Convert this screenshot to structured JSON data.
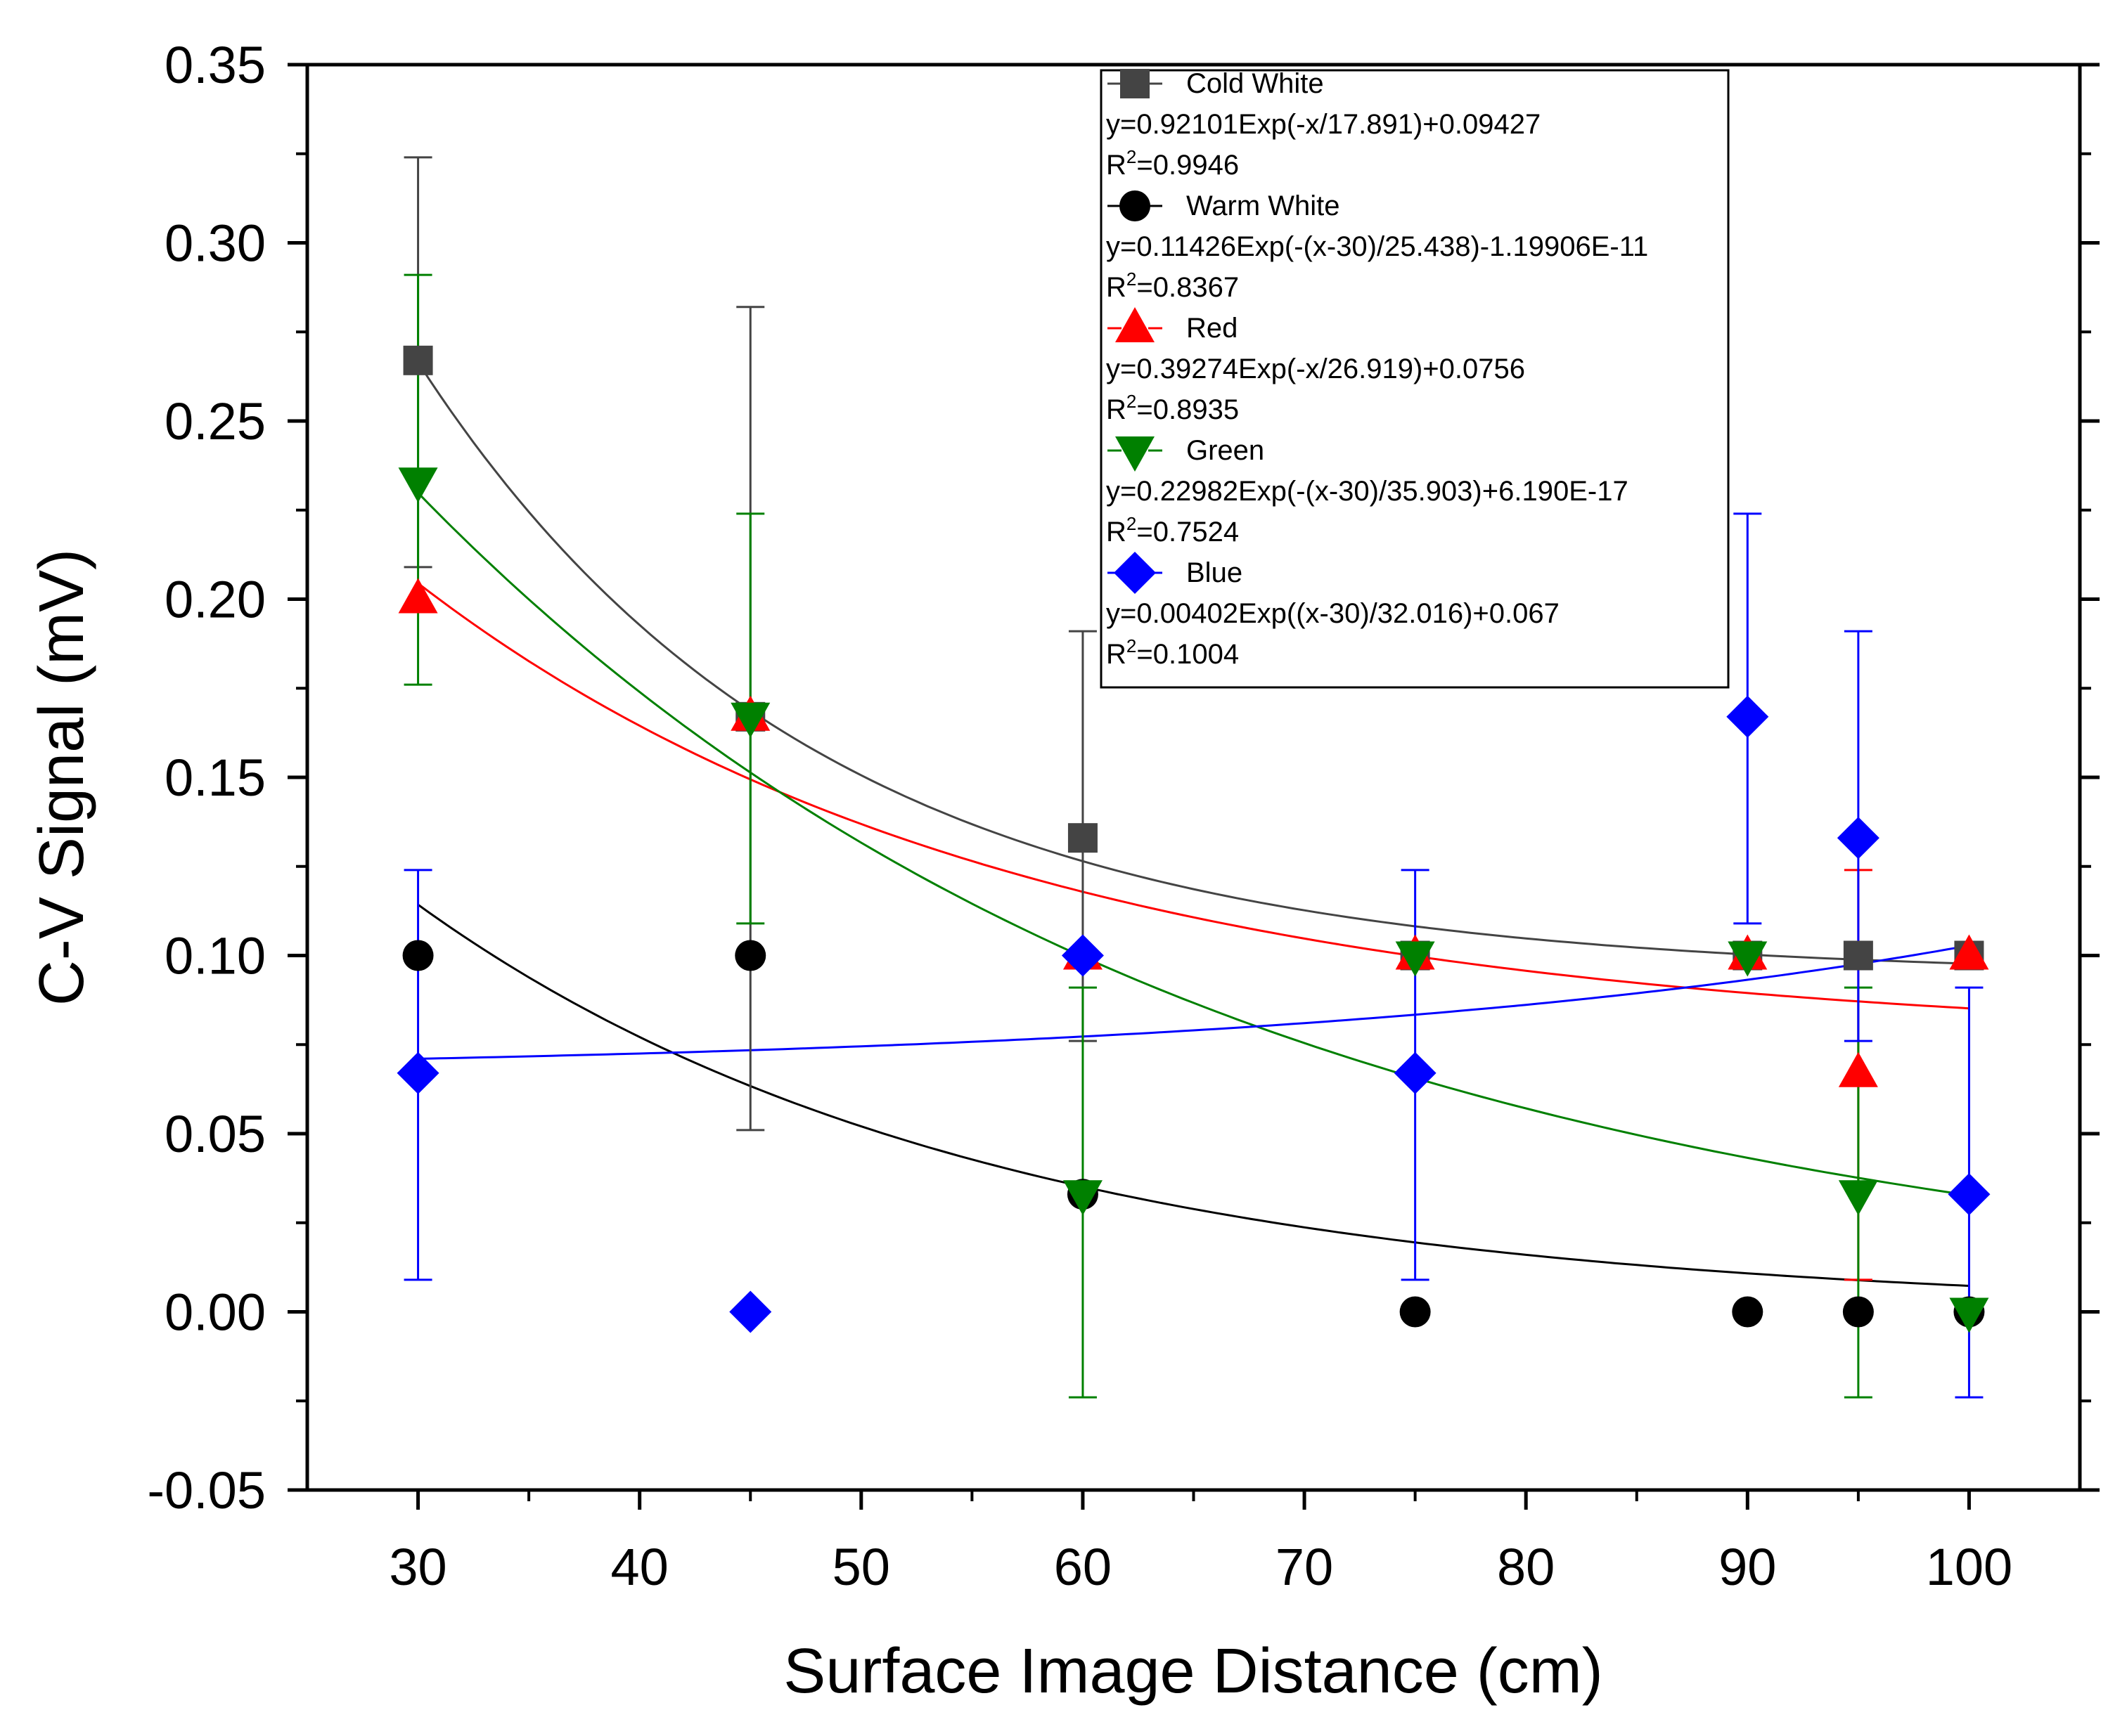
{
  "chart_data": {
    "type": "scatter",
    "title": "",
    "xlabel": "Surface Image Distance (cm)",
    "ylabel": "C-V Signal (mV)",
    "xlim": [
      25,
      105
    ],
    "ylim": [
      -0.05,
      0.35
    ],
    "x_ticks": [
      30,
      40,
      50,
      60,
      70,
      80,
      90,
      100
    ],
    "x_tick_labels": [
      "30",
      "40",
      "50",
      "60",
      "70",
      "80",
      "90",
      "100"
    ],
    "y_ticks": [
      -0.05,
      0,
      0.05,
      0.1,
      0.15,
      0.2,
      0.25,
      0.3,
      0.35
    ],
    "y_tick_labels": [
      "-0.05",
      "0.00",
      "0.05",
      "0.10",
      "0.15",
      "0.20",
      "0.25",
      "0.30",
      "0.35"
    ],
    "grid": false,
    "legend_position": "top-right",
    "series": [
      {
        "name": "Cold White",
        "color": "#444444",
        "marker": "square",
        "x": [
          30,
          45,
          60,
          75,
          90,
          95,
          100
        ],
        "values": [
          0.267,
          0.167,
          0.133,
          0.1,
          0.1,
          0.1,
          0.1
        ],
        "error_bars": [
          {
            "x": 30,
            "low": 0.209,
            "high": 0.324
          },
          {
            "x": 45,
            "low": 0.051,
            "high": 0.282
          },
          {
            "x": 60,
            "low": 0.076,
            "high": 0.191
          }
        ],
        "fit": {
          "a": 0.92101,
          "t": 17.891,
          "x0": 0,
          "c": 0.09427,
          "x_from": 30,
          "x_to": 100
        },
        "fit_equation": "y=0.92101Exp(-x/17.891)+0.09427",
        "r2_label": "R",
        "r2_sup": "2",
        "r2_value": "=0.9946"
      },
      {
        "name": "Warm White",
        "color": "#000000",
        "marker": "circle",
        "x": [
          30,
          45,
          60,
          75,
          90,
          95,
          100
        ],
        "values": [
          0.1,
          0.1,
          0.033,
          0.0,
          0.0,
          0.0,
          0.0
        ],
        "error_bars": [],
        "fit": {
          "a": 0.11426,
          "t": 25.438,
          "x0": 30,
          "c": -1.19906e-11,
          "x_from": 30,
          "x_to": 100
        },
        "fit_equation": "y=0.11426Exp(-(x-30)/25.438)-1.19906E-11",
        "r2_label": "R",
        "r2_sup": "2",
        "r2_value": "=0.8367"
      },
      {
        "name": "Red",
        "color": "#ff0000",
        "marker": "triangle-up",
        "x": [
          30,
          45,
          60,
          75,
          90,
          95,
          100
        ],
        "values": [
          0.2,
          0.167,
          0.1,
          0.1,
          0.1,
          0.067,
          0.1
        ],
        "error_bars": [
          {
            "x": 95,
            "low": 0.009,
            "high": 0.124
          }
        ],
        "fit": {
          "a": 0.39274,
          "t": 26.919,
          "x0": 0,
          "c": 0.0756,
          "x_from": 30,
          "x_to": 100
        },
        "fit_equation": "y=0.39274Exp(-x/26.919)+0.0756",
        "r2_label": "R",
        "r2_sup": "2",
        "r2_value": "=0.8935"
      },
      {
        "name": "Green",
        "color": "#008000",
        "marker": "triangle-down",
        "x": [
          30,
          45,
          60,
          75,
          90,
          95,
          100
        ],
        "values": [
          0.233,
          0.167,
          0.033,
          0.1,
          0.1,
          0.033,
          0.0
        ],
        "error_bars": [
          {
            "x": 30,
            "low": 0.176,
            "high": 0.291
          },
          {
            "x": 45,
            "low": 0.109,
            "high": 0.224
          },
          {
            "x": 60,
            "low": -0.024,
            "high": 0.091
          },
          {
            "x": 95,
            "low": -0.024,
            "high": 0.091
          }
        ],
        "fit": {
          "a": 0.22982,
          "t": 35.903,
          "x0": 30,
          "c": 6.19e-17,
          "x_from": 30,
          "x_to": 100
        },
        "fit_equation": "y=0.22982Exp(-(x-30)/35.903)+6.190E-17",
        "r2_label": "R",
        "r2_sup": "2",
        "r2_value": "=0.7524"
      },
      {
        "name": "Blue",
        "color": "#0000ff",
        "marker": "diamond",
        "x": [
          30,
          45,
          60,
          75,
          90,
          95,
          100
        ],
        "values": [
          0.067,
          0.0,
          0.1,
          0.067,
          0.167,
          0.133,
          0.033
        ],
        "error_bars": [
          {
            "x": 30,
            "low": 0.009,
            "high": 0.124
          },
          {
            "x": 75,
            "low": 0.009,
            "high": 0.124
          },
          {
            "x": 90,
            "low": 0.109,
            "high": 0.224
          },
          {
            "x": 95,
            "low": 0.076,
            "high": 0.191
          },
          {
            "x": 100,
            "low": -0.024,
            "high": 0.091
          }
        ],
        "fit": {
          "a": 0.00402,
          "t": -32.016,
          "x0": 30,
          "c": 0.067,
          "x_from": 30,
          "x_to": 100
        },
        "fit_equation": "y=0.00402Exp((x-30)/32.016)+0.067",
        "r2_label": "R",
        "r2_sup": "2",
        "r2_value": "=0.1004"
      }
    ]
  }
}
